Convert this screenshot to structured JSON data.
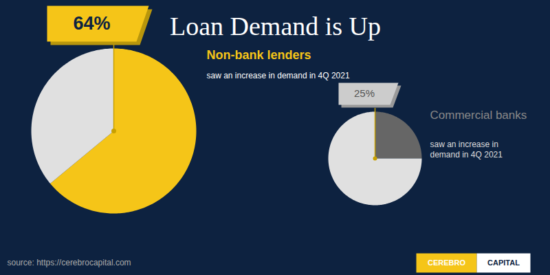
{
  "title": "Loan Demand is Up",
  "chart_data": [
    {
      "type": "pie",
      "title": "Non-bank lenders",
      "values": [
        64,
        36
      ],
      "value_labels": [
        "64%",
        null
      ],
      "colors": [
        "#f5c518",
        "#e0e0e0"
      ],
      "data_labels": true,
      "annotations": [
        "saw an increase in demand in 4Q 2021"
      ]
    },
    {
      "type": "pie",
      "title": "Commercial banks",
      "values": [
        25,
        75
      ],
      "value_labels": [
        "25%",
        null
      ],
      "colors": [
        "#666666",
        "#e0e0e0"
      ],
      "data_labels": true,
      "annotations": [
        "saw an increase in\ndemand in 4Q 2021"
      ]
    }
  ],
  "caption": "source: https://cerebrocapital.com",
  "logo": [
    "CEREBRO",
    "CAPITAL"
  ]
}
